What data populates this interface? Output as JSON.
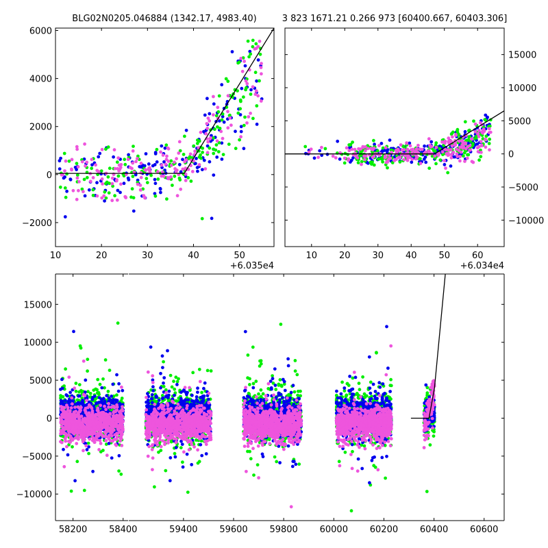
{
  "figure": {
    "title_left": "BLG02N0205.046884 (1342.17, 4983.40)",
    "title_right": "3 823 1671.21 0.266 973 [60400.667, 60403.306]"
  },
  "colors": {
    "series_blue": "#0000ee",
    "series_green": "#00ee00",
    "series_magenta": "#ee55dd",
    "model": "#000000"
  },
  "chart_data": [
    {
      "id": "top-left",
      "type": "scatter",
      "title": "BLG02N0205.046884 (1342.17, 4983.40)",
      "xlabel": "",
      "ylabel": "",
      "x_offset_label": "+6.035e4",
      "xlim": [
        10,
        57.5
      ],
      "ylim": [
        -3000,
        6100
      ],
      "xticks": [
        10,
        20,
        30,
        40,
        50
      ],
      "yticks": [
        -2000,
        0,
        2000,
        4000,
        6000
      ],
      "y_axis_side": "left",
      "grid": false,
      "series_colors": [
        "#0000ee",
        "#00ee00",
        "#ee55dd"
      ],
      "model_line": [
        [
          10,
          50
        ],
        [
          38,
          50
        ],
        [
          57.5,
          6100
        ]
      ],
      "cloud_shape": [
        [
          10,
          0,
          900
        ],
        [
          20,
          0,
          950
        ],
        [
          30,
          200,
          700
        ],
        [
          38,
          300,
          650
        ],
        [
          45,
          1800,
          1300
        ],
        [
          52,
          3800,
          1500
        ],
        [
          55,
          4500,
          1600
        ]
      ]
    },
    {
      "id": "top-right",
      "type": "scatter",
      "title": "3 823 1671.21 0.266 973 [60400.667, 60403.306]",
      "xlabel": "",
      "ylabel": "",
      "x_offset_label": "+6.034e4",
      "xlim": [
        2,
        68
      ],
      "ylim": [
        -14000,
        19000
      ],
      "xticks": [
        10,
        20,
        30,
        40,
        50,
        60
      ],
      "yticks": [
        -10000,
        -5000,
        0,
        5000,
        10000,
        15000
      ],
      "y_axis_side": "right",
      "grid": false,
      "series_colors": [
        "#0000ee",
        "#00ee00",
        "#ee55dd"
      ],
      "model_line": [
        [
          2,
          0
        ],
        [
          47,
          0
        ],
        [
          68,
          6500
        ]
      ],
      "cloud_shape": [
        [
          8,
          100,
          900
        ],
        [
          20,
          0,
          1000
        ],
        [
          30,
          0,
          1100
        ],
        [
          40,
          0,
          1100
        ],
        [
          48,
          400,
          1200
        ],
        [
          56,
          1500,
          1600
        ],
        [
          62,
          3000,
          2000
        ]
      ]
    },
    {
      "id": "bottom",
      "type": "scatter",
      "title": "",
      "xlabel": "",
      "ylabel": "",
      "xlim": [
        58130,
        60680
      ],
      "ylim": [
        -13500,
        19000
      ],
      "xticks": [
        58200,
        58400,
        59400,
        59600,
        59800,
        60000,
        60200,
        60400,
        60600
      ],
      "yticks": [
        -10000,
        -5000,
        0,
        5000,
        10000,
        15000
      ],
      "y_axis_side": "left",
      "grid": false,
      "axis_break_after": 58400,
      "axis_resume_at": 59250,
      "series_colors": [
        "#0000ee",
        "#00ee00",
        "#ee55dd"
      ],
      "seasons": [
        [
          58150,
          58400
        ],
        [
          59250,
          59510
        ],
        [
          59640,
          59870
        ],
        [
          60010,
          60230
        ],
        [
          60360,
          60402
        ]
      ],
      "model_line": [
        [
          60308,
          0
        ],
        [
          60380,
          0
        ],
        [
          60402,
          4000
        ],
        [
          60445,
          19000
        ]
      ]
    }
  ]
}
